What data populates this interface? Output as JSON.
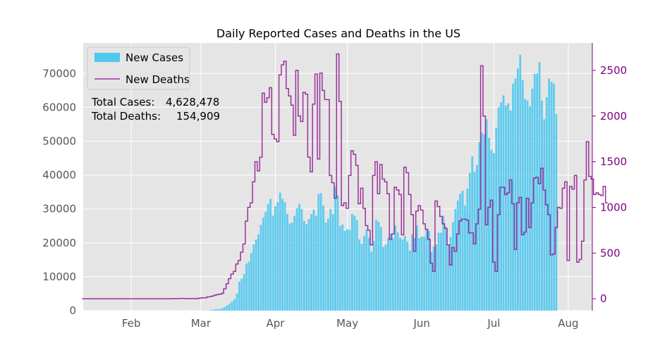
{
  "chart_data": {
    "type": "bar",
    "title": "Daily Reported Cases and Deaths in the US",
    "xlabel": "",
    "ylabel": "",
    "x_tick_labels": [
      "Feb",
      "Mar",
      "Apr",
      "May",
      "Jun",
      "Jul",
      "Aug"
    ],
    "x_tick_days": [
      31,
      60,
      91,
      121,
      152,
      182,
      213
    ],
    "x_range_days": [
      11,
      223
    ],
    "y_left_range": [
      0,
      79000
    ],
    "y_left_ticks": [
      0,
      10000,
      20000,
      30000,
      40000,
      50000,
      60000,
      70000
    ],
    "y_right_range": [
      -130,
      2800
    ],
    "y_right_ticks": [
      0,
      500,
      1000,
      1500,
      2000,
      2500
    ],
    "grid": true,
    "legend_position": "top-left",
    "start_date": "2020-01-22",
    "colors": {
      "cases": "#4fc8f0",
      "deaths": "#993399",
      "right_axis": "#800080",
      "background": "#e5e5e5"
    },
    "series": [
      {
        "name": "New Cases",
        "style": "bar",
        "axis": "left",
        "values": [
          1,
          0,
          1,
          0,
          3,
          0,
          0,
          0,
          0,
          2,
          1,
          0,
          3,
          0,
          0,
          0,
          0,
          0,
          0,
          0,
          0,
          1,
          0,
          0,
          1,
          0,
          0,
          0,
          0,
          0,
          0,
          0,
          0,
          0,
          1,
          0,
          0,
          0,
          0,
          18,
          4,
          3,
          2,
          2,
          4,
          7,
          18,
          14,
          26,
          15,
          31,
          66,
          55,
          178,
          230,
          389,
          389,
          456,
          745,
          1129,
          1568,
          2061,
          2716,
          3400,
          5000,
          8500,
          9400,
          10800,
          13900,
          14500,
          17000,
          19500,
          21000,
          22500,
          25300,
          27500,
          29200,
          31500,
          33000,
          28000,
          30800,
          32000,
          34800,
          33000,
          32000,
          28500,
          25700,
          26000,
          28000,
          30200,
          31500,
          30000,
          26500,
          25500,
          27000,
          28500,
          29800,
          28000,
          34400,
          34700,
          31000,
          26000,
          27100,
          30000,
          28500,
          36500,
          34000,
          25000,
          25400,
          23500,
          24000,
          23800,
          28500,
          28000,
          26700,
          21000,
          19800,
          22000,
          24000,
          21500,
          17400,
          20500,
          26800,
          26200,
          24700,
          18800,
          19500,
          21500,
          22700,
          21300,
          25100,
          23100,
          21500,
          21000,
          22000,
          20400,
          17700,
          22500,
          21400,
          25100,
          21400,
          21900,
          21800,
          24000,
          23500,
          17300,
          18900,
          19500,
          23000,
          23000,
          28000,
          24700,
          19300,
          21700,
          26100,
          30000,
          32500,
          34500,
          35400,
          31000,
          36000,
          40700,
          45500,
          41000,
          43000,
          49800,
          52500,
          52000,
          56500,
          51000,
          47500,
          46500,
          54000,
          60000,
          61500,
          63500,
          60500,
          61200,
          59000,
          67000,
          68500,
          71500,
          75500,
          68000,
          62500,
          62000,
          60300,
          65500,
          69900,
          70000,
          73300,
          62000,
          56500,
          63000,
          68500,
          67500,
          67000,
          58000
        ],
        "total_label": "Total Cases:",
        "total": "4,628,478"
      },
      {
        "name": "New Deaths",
        "style": "step",
        "axis": "right",
        "values": [
          0,
          0,
          0,
          0,
          0,
          0,
          0,
          0,
          0,
          0,
          0,
          0,
          0,
          0,
          0,
          0,
          0,
          0,
          0,
          0,
          0,
          0,
          0,
          0,
          0,
          0,
          0,
          0,
          0,
          0,
          0,
          0,
          0,
          0,
          0,
          0,
          0,
          0,
          2,
          1,
          3,
          4,
          3,
          1,
          2,
          3,
          2,
          0,
          5,
          8,
          10,
          11,
          20,
          23,
          30,
          40,
          45,
          50,
          60,
          110,
          165,
          220,
          270,
          300,
          380,
          420,
          510,
          600,
          850,
          1000,
          1050,
          1280,
          1500,
          1400,
          1550,
          2250,
          2150,
          2200,
          2310,
          1800,
          1750,
          1720,
          2450,
          2560,
          2600,
          2300,
          2220,
          2120,
          1790,
          2500,
          2000,
          1940,
          2260,
          2240,
          1550,
          1390,
          2130,
          2460,
          1530,
          2470,
          2280,
          2180,
          2180,
          1350,
          1270,
          1100,
          2680,
          2160,
          1020,
          1050,
          990,
          1350,
          1620,
          1580,
          1460,
          1040,
          1210,
          990,
          800,
          750,
          590,
          1350,
          1500,
          1150,
          1470,
          1310,
          1280,
          1150,
          650,
          710,
          1220,
          1190,
          1140,
          700,
          1440,
          1380,
          1140,
          920,
          520,
          960,
          1020,
          970,
          820,
          760,
          650,
          390,
          300,
          1070,
          1010,
          900,
          820,
          770,
          590,
          370,
          560,
          520,
          710,
          850,
          870,
          870,
          860,
          720,
          720,
          600,
          820,
          980,
          2550,
          2000,
          810,
          1000,
          1080,
          400,
          300,
          920,
          1220,
          1220,
          1140,
          1160,
          1300,
          1040,
          540,
          1050,
          1110,
          700,
          730,
          1100,
          780,
          1050,
          1320,
          1330,
          1260,
          1430,
          1190,
          1030,
          920,
          480,
          490,
          780,
          1000,
          990,
          1210,
          1280,
          420,
          1230,
          1200,
          1350,
          400,
          430,
          630,
          1300,
          1720,
          1340,
          1310,
          1140,
          1160,
          1140,
          1130,
          1230,
          1050
        ],
        "total_label": "Total Deaths:",
        "total": "154,909"
      }
    ]
  }
}
